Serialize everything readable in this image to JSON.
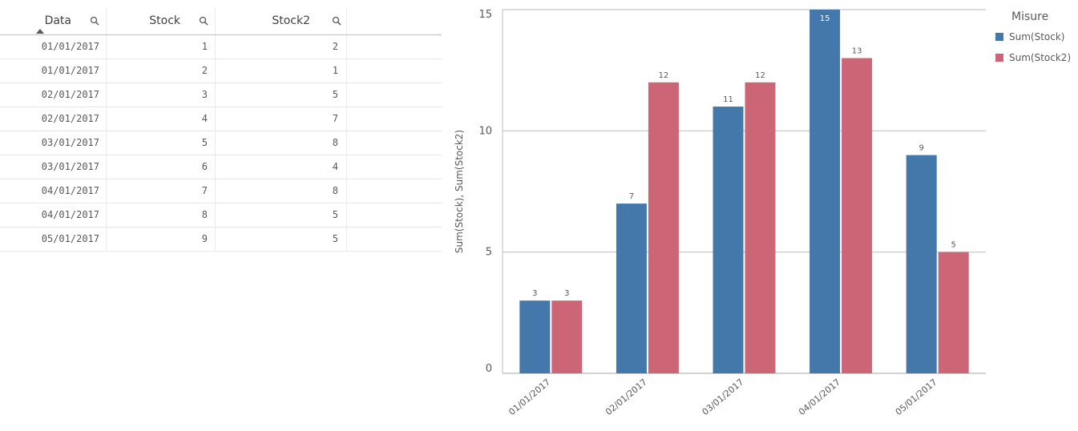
{
  "table": {
    "columns": [
      "Data",
      "Stock",
      "Stock2"
    ],
    "rows": [
      [
        "01/01/2017",
        "1",
        "2"
      ],
      [
        "01/01/2017",
        "2",
        "1"
      ],
      [
        "02/01/2017",
        "3",
        "5"
      ],
      [
        "02/01/2017",
        "4",
        "7"
      ],
      [
        "03/01/2017",
        "5",
        "8"
      ],
      [
        "03/01/2017",
        "6",
        "4"
      ],
      [
        "04/01/2017",
        "7",
        "8"
      ],
      [
        "04/01/2017",
        "8",
        "5"
      ],
      [
        "05/01/2017",
        "9",
        "5"
      ]
    ]
  },
  "chart_data": {
    "type": "bar",
    "y_label": "Sum(Stock), Sum(Stock2)",
    "legend_title": "Misure",
    "categories": [
      "01/01/2017",
      "02/01/2017",
      "03/01/2017",
      "04/01/2017",
      "05/01/2017"
    ],
    "series": [
      {
        "name": "Sum(Stock)",
        "color": "#4477aa",
        "values": [
          3,
          7,
          11,
          15,
          9
        ]
      },
      {
        "name": "Sum(Stock2)",
        "color": "#cc6677",
        "values": [
          3,
          12,
          12,
          13,
          5
        ]
      }
    ],
    "ylim": [
      0,
      15
    ],
    "yticks": [
      0,
      5,
      10,
      15
    ],
    "grid": true,
    "legend": "right",
    "data_labels": true
  }
}
